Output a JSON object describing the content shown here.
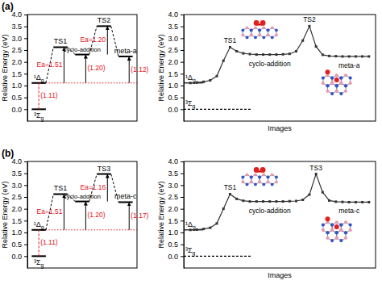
{
  "chart_data": [
    {
      "type": "energy_diagram",
      "panel": "(a)",
      "ylabel": "Relative Energy (eV)",
      "ylim": [
        -0.5,
        4.0
      ],
      "yticks": [
        {
          "value": 0,
          "label": "0.0"
        },
        0.5,
        {
          "value": 1,
          "label": "1.0"
        },
        1.5,
        {
          "value": 2,
          "label": "2.0"
        },
        2.5,
        {
          "value": 3,
          "label": "3.0"
        },
        3.5,
        {
          "value": 4,
          "label": "4.0"
        }
      ],
      "tick_labels": "y",
      "categories": [
        "³Σg",
        "¹Δg",
        "TS1",
        "cyclo-addition",
        "TS2",
        "meta-a"
      ],
      "values": [
        0,
        1.11,
        2.62,
        2.31,
        3.51,
        2.23
      ],
      "annotations": [
        {
          "label": "(1.11)",
          "value": 1.11,
          "from": "³Σg",
          "to": "¹Δg"
        },
        {
          "label": "Ea=1.51",
          "value": 1.51,
          "from": "¹Δg",
          "to": "TS1"
        },
        {
          "label": "(1.20)",
          "value": 1.2,
          "from": "¹Δg",
          "to": "cyclo-addition"
        },
        {
          "label": "Ea=1.20",
          "value": 1.2,
          "from": "cyclo-addition",
          "to": "TS2"
        },
        {
          "label": "(1.12)",
          "value": 1.12,
          "from": "¹Δg",
          "to": "meta-a"
        }
      ]
    },
    {
      "type": "line",
      "xlabel": "Images",
      "ylabel": "Relative Energy (eV)",
      "xlim": [
        -1,
        28
      ],
      "ylim": [
        -0.5,
        4.0
      ],
      "yticks": [
        {
          "value": 0,
          "label": "0.0"
        },
        0.5,
        {
          "value": 1,
          "label": "1.0"
        },
        1.5,
        {
          "value": 2,
          "label": "2.0"
        },
        2.5,
        {
          "value": 3,
          "label": "3.0"
        },
        3.5,
        {
          "value": 4,
          "label": "4.0"
        }
      ],
      "tick_labels": "y",
      "x": [
        0,
        1,
        2,
        3,
        4,
        5,
        6,
        7,
        8,
        9,
        10,
        11,
        12,
        13,
        14,
        15,
        16,
        17,
        18,
        19,
        20,
        21,
        22,
        23,
        24,
        25,
        26,
        27
      ],
      "values": [
        1.11,
        1.13,
        1.16,
        1.22,
        1.4,
        2.05,
        2.62,
        2.45,
        2.36,
        2.33,
        2.31,
        2.31,
        2.31,
        2.31,
        2.32,
        2.34,
        2.45,
        2.9,
        3.51,
        2.65,
        2.3,
        2.25,
        2.24,
        2.23,
        2.23,
        2.23,
        2.23,
        2.23
      ],
      "color": "#333333",
      "marker": "square",
      "reference_lines": [
        {
          "label": "¹Δg",
          "value": 1.11,
          "line_style": "solid"
        },
        {
          "label": "³Σg",
          "value": 0,
          "line_style": "dashed"
        }
      ],
      "annotations": [
        {
          "label": "TS1",
          "x": 6
        },
        {
          "label": "cyclo-addition",
          "x": 12
        },
        {
          "label": "TS2",
          "x": 18
        },
        {
          "label": "meta-a",
          "x": 24
        }
      ]
    },
    {
      "type": "energy_diagram",
      "panel": "(b)",
      "ylabel": "Relative Energy (eV)",
      "ylim": [
        -0.5,
        4.0
      ],
      "yticks": [
        {
          "value": 0,
          "label": "0.0"
        },
        0.5,
        {
          "value": 1,
          "label": "1.0"
        },
        1.5,
        {
          "value": 2,
          "label": "2.0"
        },
        2.5,
        {
          "value": 3,
          "label": "3.0"
        },
        3.5,
        {
          "value": 4,
          "label": "4.0"
        }
      ],
      "tick_labels": "y",
      "categories": [
        "³Σg",
        "¹Δg",
        "TS1",
        "cyclo-addition",
        "TS3",
        "meta-c"
      ],
      "values": [
        0,
        1.11,
        2.62,
        2.31,
        3.47,
        2.28
      ],
      "annotations": [
        {
          "label": "(1.11)",
          "value": 1.11,
          "from": "³Σg",
          "to": "¹Δg"
        },
        {
          "label": "Ea=1.51",
          "value": 1.51,
          "from": "¹Δg",
          "to": "TS1"
        },
        {
          "label": "(1.20)",
          "value": 1.2,
          "from": "¹Δg",
          "to": "cyclo-addition"
        },
        {
          "label": "Ea=1.16",
          "value": 1.16,
          "from": "cyclo-addition",
          "to": "TS3"
        },
        {
          "label": "(1.17)",
          "value": 1.17,
          "from": "¹Δg",
          "to": "meta-c"
        }
      ]
    },
    {
      "type": "line",
      "xlabel": "Images",
      "ylabel": "Relative Energy (eV)",
      "xlim": [
        -1,
        28
      ],
      "ylim": [
        -0.5,
        4.0
      ],
      "yticks": [
        {
          "value": 0,
          "label": "0.0"
        },
        0.5,
        {
          "value": 1,
          "label": "1.0"
        },
        1.5,
        {
          "value": 2,
          "label": "2.0"
        },
        2.5,
        {
          "value": 3,
          "label": "3.0"
        },
        3.5,
        {
          "value": 4,
          "label": "4.0"
        }
      ],
      "tick_labels": "y",
      "x": [
        0,
        1,
        2,
        3,
        4,
        5,
        6,
        7,
        8,
        9,
        10,
        11,
        12,
        13,
        14,
        15,
        16,
        17,
        18,
        19,
        20,
        21,
        22,
        23,
        24,
        25,
        26,
        27
      ],
      "values": [
        1.11,
        1.12,
        1.15,
        1.2,
        1.38,
        2.0,
        2.62,
        2.42,
        2.34,
        2.31,
        2.31,
        2.31,
        2.31,
        2.31,
        2.31,
        2.32,
        2.33,
        2.38,
        2.6,
        3.47,
        2.7,
        2.35,
        2.3,
        2.29,
        2.28,
        2.28,
        2.28,
        2.28
      ],
      "color": "#333333",
      "marker": "square",
      "reference_lines": [
        {
          "label": "¹Δg",
          "value": 1.11,
          "line_style": "solid"
        },
        {
          "label": "³Σg",
          "value": 0,
          "line_style": "dashed"
        }
      ],
      "annotations": [
        {
          "label": "TS1",
          "x": 6
        },
        {
          "label": "cyclo-addition",
          "x": 12
        },
        {
          "label": "TS3",
          "x": 19
        },
        {
          "label": "meta-c",
          "x": 24
        }
      ]
    }
  ]
}
